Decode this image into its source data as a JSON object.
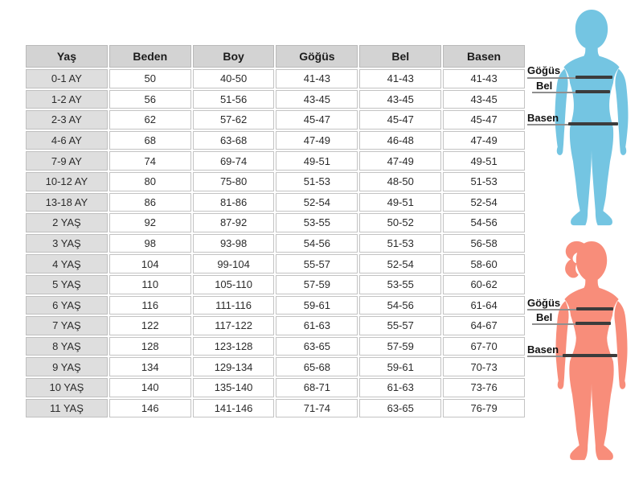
{
  "table": {
    "columns": [
      "Yaş",
      "Beden",
      "Boy",
      "Göğüs",
      "Bel",
      "Basen"
    ],
    "rows": [
      [
        "0-1 AY",
        "50",
        "40-50",
        "41-43",
        "41-43",
        "41-43"
      ],
      [
        "1-2 AY",
        "56",
        "51-56",
        "43-45",
        "43-45",
        "43-45"
      ],
      [
        "2-3 AY",
        "62",
        "57-62",
        "45-47",
        "45-47",
        "45-47"
      ],
      [
        "4-6 AY",
        "68",
        "63-68",
        "47-49",
        "46-48",
        "47-49"
      ],
      [
        "7-9 AY",
        "74",
        "69-74",
        "49-51",
        "47-49",
        "49-51"
      ],
      [
        "10-12 AY",
        "80",
        "75-80",
        "51-53",
        "48-50",
        "51-53"
      ],
      [
        "13-18 AY",
        "86",
        "81-86",
        "52-54",
        "49-51",
        "52-54"
      ],
      [
        "2 YAŞ",
        "92",
        "87-92",
        "53-55",
        "50-52",
        "54-56"
      ],
      [
        "3 YAŞ",
        "98",
        "93-98",
        "54-56",
        "51-53",
        "56-58"
      ],
      [
        "4 YAŞ",
        "104",
        "99-104",
        "55-57",
        "52-54",
        "58-60"
      ],
      [
        "5 YAŞ",
        "110",
        "105-110",
        "57-59",
        "53-55",
        "60-62"
      ],
      [
        "6 YAŞ",
        "116",
        "111-116",
        "59-61",
        "54-56",
        "61-64"
      ],
      [
        "7 YAŞ",
        "122",
        "117-122",
        "61-63",
        "55-57",
        "64-67"
      ],
      [
        "8 YAŞ",
        "128",
        "123-128",
        "63-65",
        "57-59",
        "67-70"
      ],
      [
        "9 YAŞ",
        "134",
        "129-134",
        "65-68",
        "59-61",
        "70-73"
      ],
      [
        "10 YAŞ",
        "140",
        "135-140",
        "68-71",
        "61-63",
        "73-76"
      ],
      [
        "11 YAŞ",
        "146",
        "141-146",
        "71-74",
        "63-65",
        "76-79"
      ]
    ]
  },
  "figures": {
    "labels": {
      "chest": "Göğüs",
      "waist": "Bel",
      "hip": "Basen"
    },
    "boy_color": "#74C5E2",
    "girl_color": "#F88D7A"
  },
  "colors": {
    "header_bg": "#d3d3d3",
    "row_label_bg": "#dedede",
    "cell_border": "#c3c3c3",
    "measure_bar": "#3c3c3c",
    "measure_line": "#8f8f8f",
    "text": "#2b2b2b"
  }
}
